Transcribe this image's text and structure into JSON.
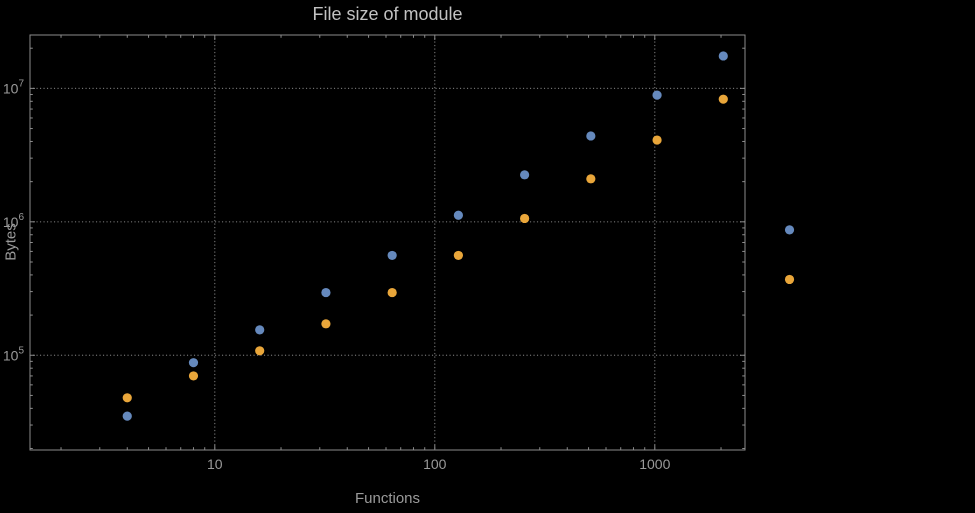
{
  "chart_data": {
    "type": "scatter",
    "title": "File size of module",
    "xlabel": "Functions",
    "ylabel": "Bytes",
    "x_scale": "log",
    "y_scale": "log",
    "grid": true,
    "legend": "none",
    "x_ticks": [
      10,
      100,
      1000
    ],
    "y_ticks": [
      100000,
      1000000,
      10000000
    ],
    "xlim_log": [
      0.16,
      3.41
    ],
    "ylim_log": [
      4.29,
      7.4
    ],
    "series": [
      {
        "name": "series-1-blue",
        "color": "#6589bd",
        "points": [
          [
            4,
            35000
          ],
          [
            8,
            88000
          ],
          [
            16,
            155000
          ],
          [
            32,
            295000
          ],
          [
            64,
            560000
          ],
          [
            128,
            1120000
          ],
          [
            256,
            2250000
          ],
          [
            512,
            4400000
          ],
          [
            1024,
            8900000
          ],
          [
            2048,
            17500000
          ],
          [
            4096,
            870000
          ]
        ]
      },
      {
        "name": "series-2-orange",
        "color": "#e9a63a",
        "points": [
          [
            4,
            48000
          ],
          [
            8,
            70000
          ],
          [
            16,
            108000
          ],
          [
            32,
            172000
          ],
          [
            64,
            295000
          ],
          [
            128,
            560000
          ],
          [
            256,
            1060000
          ],
          [
            512,
            2100000
          ],
          [
            1024,
            4100000
          ],
          [
            2048,
            8300000
          ],
          [
            4096,
            370000
          ]
        ]
      }
    ]
  },
  "style": {
    "background": "#000000",
    "frame_color": "#8c8c8c",
    "grid_color": "#787878",
    "label_color": "#9a9a9a",
    "title_color": "#c2c2c2"
  }
}
